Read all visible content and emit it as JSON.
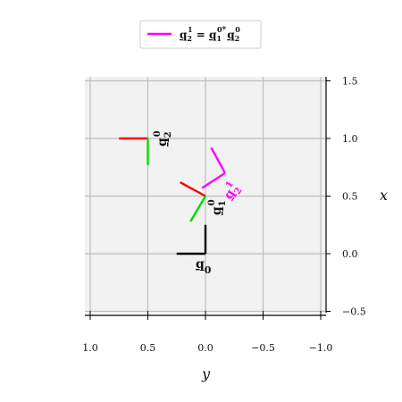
{
  "chart_data": {
    "type": "diagram",
    "plot": {
      "x_axis": {
        "label": "x",
        "side": "right",
        "range": [
          -0.5,
          1.5
        ],
        "ticks": [
          1.5,
          1.0,
          0.5,
          0.0,
          -0.5
        ],
        "tick_labels": [
          "1.5",
          "1.0",
          "0.5",
          "0.0",
          "−0.5"
        ]
      },
      "y_axis": {
        "label": "y",
        "side": "bottom",
        "inverted": true,
        "range": [
          1.0,
          -1.0
        ],
        "ticks": [
          1.0,
          0.5,
          0.0,
          -0.5,
          -1.0
        ],
        "tick_labels": [
          "1.0",
          "0.5",
          "0.0",
          "−0.5",
          "−1.0"
        ]
      },
      "grid": true,
      "background": "#f2f2f2",
      "grid_color": "#bdbdbd"
    },
    "legend": {
      "placement": "top-center",
      "entries": [
        {
          "color": "#ff00ff",
          "label": "q₂¹ = q₁⁰* q₂⁰"
        }
      ]
    },
    "frames": [
      {
        "name": "q0",
        "label": "q₀",
        "origin": {
          "x": 0.0,
          "y": 0.0
        },
        "segments": [
          {
            "color": "#000000",
            "to": {
              "x": 0.25,
              "y": 0.0
            }
          },
          {
            "color": "#000000",
            "to": {
              "x": 0.0,
              "y": 0.25
            }
          }
        ]
      },
      {
        "name": "q1-0",
        "label": "q₁⁰",
        "origin": {
          "x": 0.5,
          "y": 0.0
        },
        "segments": [
          {
            "color": "#ff0000",
            "to": {
              "x": 0.62,
              "y": 0.22
            }
          },
          {
            "color": "#00dd00",
            "to": {
              "x": 0.28,
              "y": 0.13
            }
          }
        ]
      },
      {
        "name": "q2-0",
        "label": "q₂⁰",
        "origin": {
          "x": 1.0,
          "y": 0.5
        },
        "segments": [
          {
            "color": "#ff0000",
            "to": {
              "x": 1.0,
              "y": 0.75
            }
          },
          {
            "color": "#00dd00",
            "to": {
              "x": 0.77,
              "y": 0.5
            }
          }
        ]
      },
      {
        "name": "q2-1",
        "label": "q₂¹",
        "origin": {
          "x": 0.7,
          "y": -0.17
        },
        "segments": [
          {
            "color": "#ff00ff",
            "to": {
              "x": 0.92,
              "y": -0.05
            }
          },
          {
            "color": "#ff00ff",
            "to": {
              "x": 0.57,
              "y": 0.03
            }
          }
        ]
      }
    ]
  }
}
